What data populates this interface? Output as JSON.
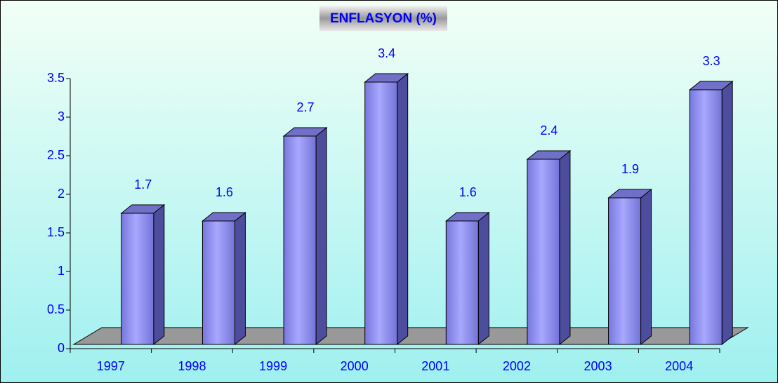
{
  "chart_data": {
    "type": "bar",
    "title": "ENFLASYON (%)",
    "categories": [
      "1997",
      "1998",
      "1999",
      "2000",
      "2001",
      "2002",
      "2003",
      "2004"
    ],
    "values": [
      1.7,
      1.6,
      2.7,
      3.4,
      1.6,
      2.4,
      1.9,
      3.3
    ],
    "color": "#9999ff",
    "ylim": [
      0,
      3.5
    ],
    "yticks": [
      0,
      0.5,
      1,
      1.5,
      2,
      2.5,
      3,
      3.5
    ],
    "grid": false
  }
}
